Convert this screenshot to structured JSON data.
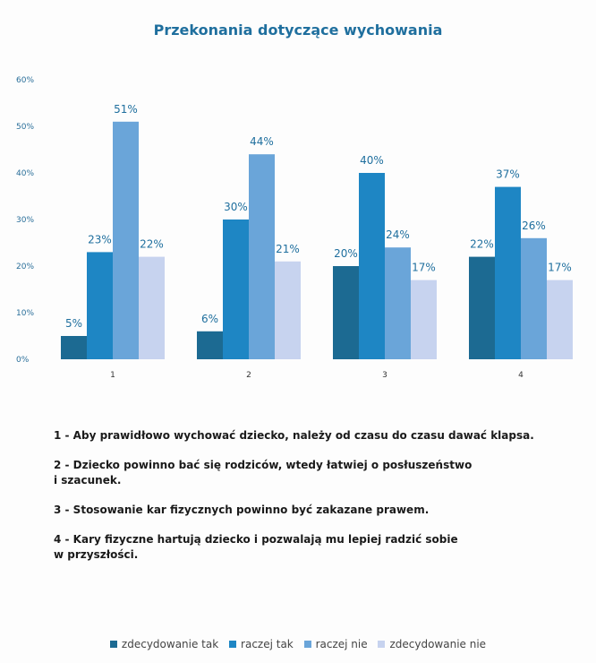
{
  "chart_data": {
    "type": "bar",
    "title": "Przekonania dotyczące wychowania",
    "categories": [
      "1",
      "2",
      "3",
      "4"
    ],
    "series": [
      {
        "name": "zdecydowanie tak",
        "values": [
          5,
          6,
          20,
          22
        ],
        "color": "#1c6a92"
      },
      {
        "name": "raczej tak",
        "values": [
          23,
          30,
          40,
          37
        ],
        "color": "#1e86c4"
      },
      {
        "name": "raczej nie",
        "values": [
          51,
          44,
          24,
          26
        ],
        "color": "#6aa5d9"
      },
      {
        "name": "zdecydowanie nie",
        "values": [
          22,
          21,
          17,
          17
        ],
        "color": "#c7d3ef"
      }
    ],
    "data_labels": [
      [
        "5%",
        "6%",
        "20%",
        "22%"
      ],
      [
        "23%",
        "30%",
        "40%",
        "37%"
      ],
      [
        "51%",
        "44%",
        "24%",
        "26%"
      ],
      [
        "22%",
        "21%",
        "17%",
        "17%"
      ]
    ],
    "yticks": [
      "0%",
      "10%",
      "20%",
      "30%",
      "40%",
      "50%",
      "60%"
    ],
    "ylim": [
      0,
      60
    ],
    "grid": false,
    "legend_position": "bottom"
  },
  "notes": [
    "1 - Aby prawidłowo wychować dziecko, należy od czasu do czasu dawać klapsa.",
    "2 - Dziecko powinno bać się rodziców, wtedy łatwiej o posłuszeństwo\ni szacunek.",
    "3 - Stosowanie kar fizycznych powinno być zakazane prawem.",
    "4 - Kary fizyczne hartują dziecko i pozwalają mu lepiej radzić sobie\nw przyszłości."
  ]
}
